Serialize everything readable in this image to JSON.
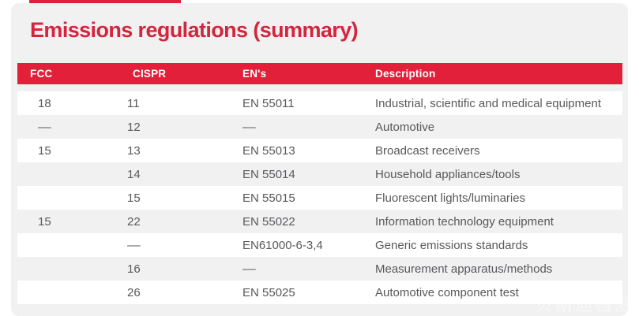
{
  "title": "Emissions regulations (summary)",
  "table": {
    "columns": [
      "FCC",
      "CISPR",
      "EN's",
      "Description"
    ],
    "rows": [
      {
        "fcc": "18",
        "cispr": "11",
        "en": "EN 55011",
        "desc": "Industrial, scientific and medical equipment"
      },
      {
        "fcc": "––",
        "cispr": "12",
        "en": "––",
        "desc": "Automotive"
      },
      {
        "fcc": "15",
        "cispr": "13",
        "en": "EN 55013",
        "desc": "Broadcast receivers"
      },
      {
        "fcc": "",
        "cispr": "14",
        "en": "EN 55014",
        "desc": "Household appliances/tools"
      },
      {
        "fcc": "",
        "cispr": "15",
        "en": "EN 55015",
        "desc": "Fluorescent lights/luminaries"
      },
      {
        "fcc": "15",
        "cispr": "22",
        "en": "EN 55022",
        "desc": "Information technology equipment"
      },
      {
        "fcc": "",
        "cispr": "––",
        "en": "EN61000-6-3,4",
        "desc": "Generic emissions standards"
      },
      {
        "fcc": "",
        "cispr": "16",
        "en": "––",
        "desc": "Measurement apparatus/methods"
      },
      {
        "fcc": "",
        "cispr": "26",
        "en": "EN 55025",
        "desc": "Automotive component test"
      }
    ]
  },
  "watermark": "贝斯迪检测",
  "colors": {
    "accent_red": "#e2203a",
    "title_red": "#d2263c",
    "card_bg": "#f1f1f2",
    "row_white": "#ffffff",
    "text_gray": "#58595b",
    "header_text": "#ffffff"
  }
}
